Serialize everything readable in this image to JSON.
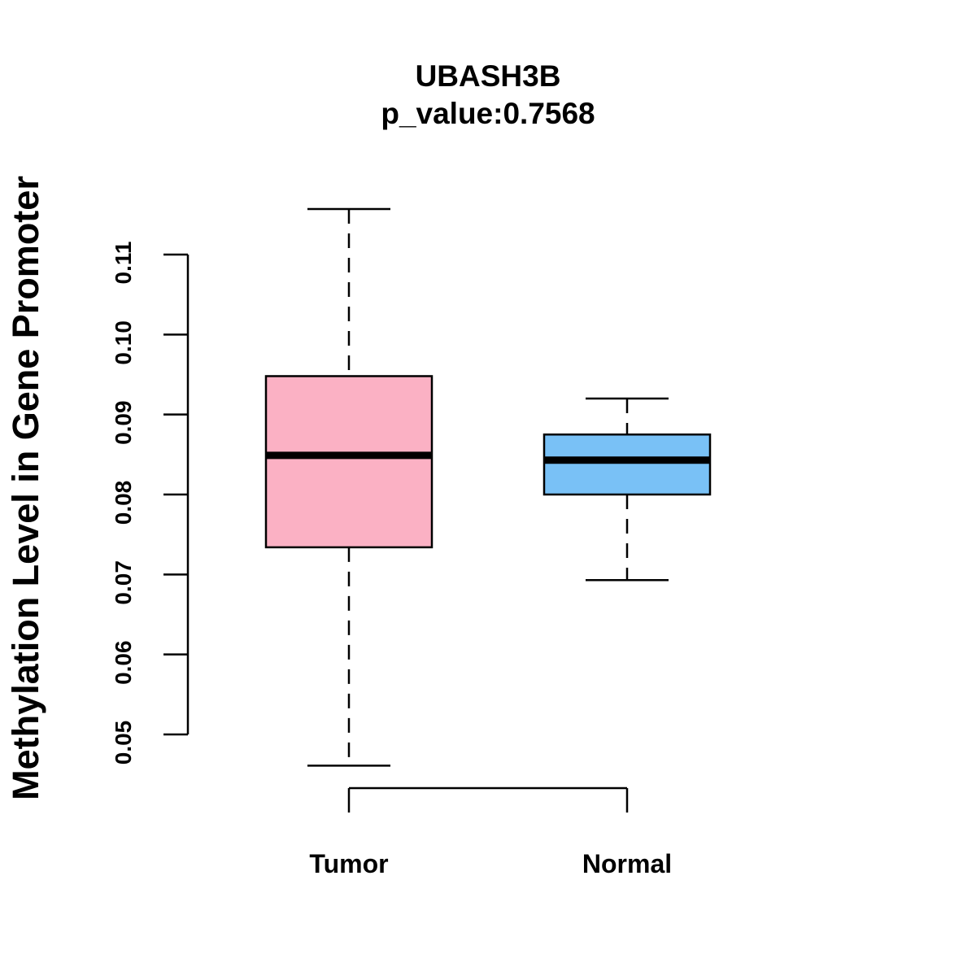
{
  "chart_data": {
    "type": "box",
    "title": "UBASH3B",
    "subtitle": "p_value:0.7568",
    "ylabel": "Methylation Level in Gene Promoter",
    "xlabel": "",
    "ylim": [
      0.05,
      0.11
    ],
    "yticks": [
      "0.05",
      "0.06",
      "0.07",
      "0.08",
      "0.09",
      "0.10",
      "0.11"
    ],
    "categories": [
      "Tumor",
      "Normal"
    ],
    "series": [
      {
        "category": "Tumor",
        "whisker_low": 0.0461,
        "q1": 0.0734,
        "median": 0.0849,
        "q3": 0.0948,
        "whisker_high": 0.1157,
        "color": "#fbb1c4"
      },
      {
        "category": "Normal",
        "whisker_low": 0.0693,
        "q1": 0.08,
        "median": 0.0843,
        "q3": 0.0875,
        "whisker_high": 0.092,
        "color": "#79c1f6"
      }
    ],
    "grid": false,
    "legend": "none"
  }
}
